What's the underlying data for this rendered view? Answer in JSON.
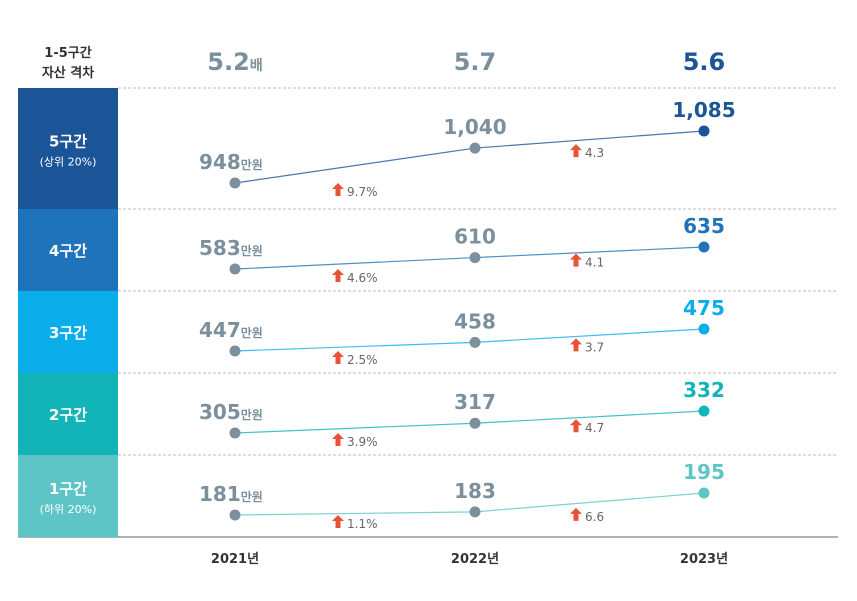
{
  "chart_data": {
    "type": "line",
    "header_label": [
      "1-5구간",
      "자산 격차"
    ],
    "gap_ratio": [
      {
        "value": "5.2",
        "unit": "배"
      },
      {
        "value": "5.7",
        "unit": ""
      },
      {
        "value": "5.6",
        "unit": ""
      }
    ],
    "categories": [
      "2021년",
      "2022년",
      "2023년"
    ],
    "unit": "만원",
    "series": [
      {
        "name": "5구간",
        "sub": "(상위 20%)",
        "color": "#1b5497",
        "values": [
          948,
          1040,
          1085
        ],
        "labels": [
          "948",
          "1,040",
          "1,085"
        ],
        "growth": [
          "9.7%",
          "4.3"
        ]
      },
      {
        "name": "4구간",
        "sub": "",
        "color": "#1f73ba",
        "values": [
          583,
          610,
          635
        ],
        "labels": [
          "583",
          "610",
          "635"
        ],
        "growth": [
          "4.6%",
          "4.1"
        ]
      },
      {
        "name": "3구간",
        "sub": "",
        "color": "#0badea",
        "values": [
          447,
          458,
          475
        ],
        "labels": [
          "447",
          "458",
          "475"
        ],
        "growth": [
          "2.5%",
          "3.7"
        ]
      },
      {
        "name": "2구간",
        "sub": "",
        "color": "#12b4b7",
        "values": [
          305,
          317,
          332
        ],
        "labels": [
          "305",
          "317",
          "332"
        ],
        "growth": [
          "3.9%",
          "4.7"
        ]
      },
      {
        "name": "1구간",
        "sub": "(하위 20%)",
        "color": "#5ec5c6",
        "values": [
          181,
          183,
          195
        ],
        "labels": [
          "181",
          "183",
          "195"
        ],
        "growth": [
          "1.1%",
          "6.6"
        ]
      }
    ],
    "colors": {
      "gray": "#7b909c",
      "arrow": "#e8523a",
      "growth_text": "#666666"
    }
  }
}
